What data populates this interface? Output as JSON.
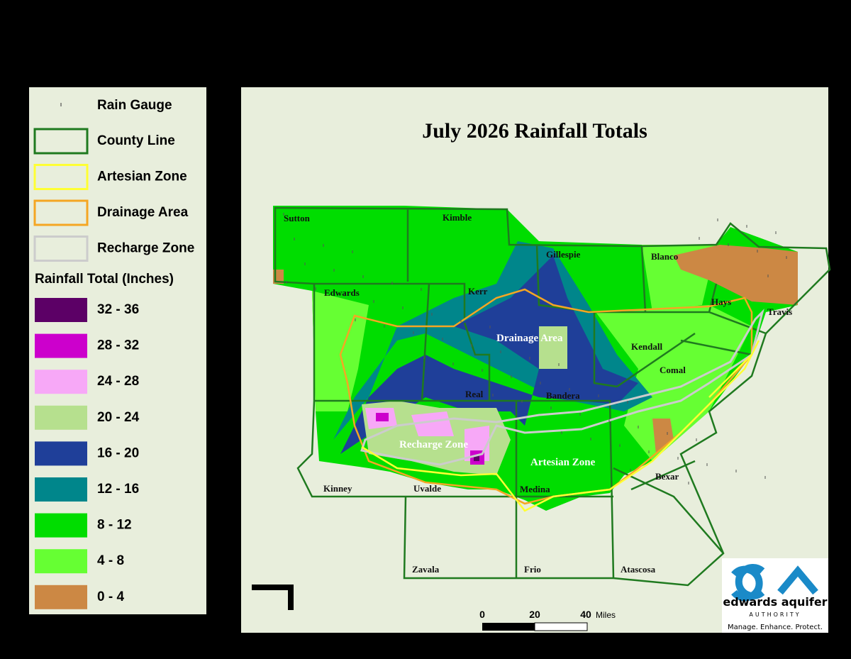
{
  "legend": {
    "gauge_label": "Rain Gauge",
    "lines": [
      {
        "label": "County Line",
        "color": "#1f7a1f"
      },
      {
        "label": "Artesian Zone",
        "color": "#ffff33"
      },
      {
        "label": "Drainage Area",
        "color": "#f5a623"
      },
      {
        "label": "Recharge Zone",
        "color": "#cccccc"
      }
    ],
    "rainfall_title": "Rainfall Total (Inches)",
    "bins": [
      {
        "label": "32 - 36",
        "color": "#5c0066"
      },
      {
        "label": "28 - 32",
        "color": "#cc00cc"
      },
      {
        "label": "24 - 28",
        "color": "#f7a8f7"
      },
      {
        "label": "20 - 24",
        "color": "#b6e08e"
      },
      {
        "label": "16 - 20",
        "color": "#1f3f99"
      },
      {
        "label": "12 - 16",
        "color": "#00868b"
      },
      {
        "label": "8 - 12",
        "color": "#00dd00"
      },
      {
        "label": "4 - 8",
        "color": "#66ff33"
      },
      {
        "label": "0 - 4",
        "color": "#cc8844"
      }
    ]
  },
  "map": {
    "title": "July 2026 Rainfall Totals",
    "labels": [
      "Sutton",
      "Kimble",
      "Gillespie",
      "Blanco",
      "Edwards",
      "Kerr",
      "Hays",
      "Travis",
      "Kendall",
      "Comal",
      "Real",
      "Bandera",
      "Bexar",
      "Kinney",
      "Uvalde",
      "Medina",
      "Zavala",
      "Frio",
      "Atascosa"
    ],
    "zone_labels": [
      "Drainage Area",
      "Recharge Zone",
      "Artesian Zone"
    ]
  },
  "scale": {
    "ticks": [
      "0",
      "20",
      "40"
    ],
    "unit": "Miles"
  },
  "logo": {
    "name": "edwards aquifer",
    "sub": "AUTHORITY",
    "tagline": "Manage. Enhance. Protect."
  }
}
